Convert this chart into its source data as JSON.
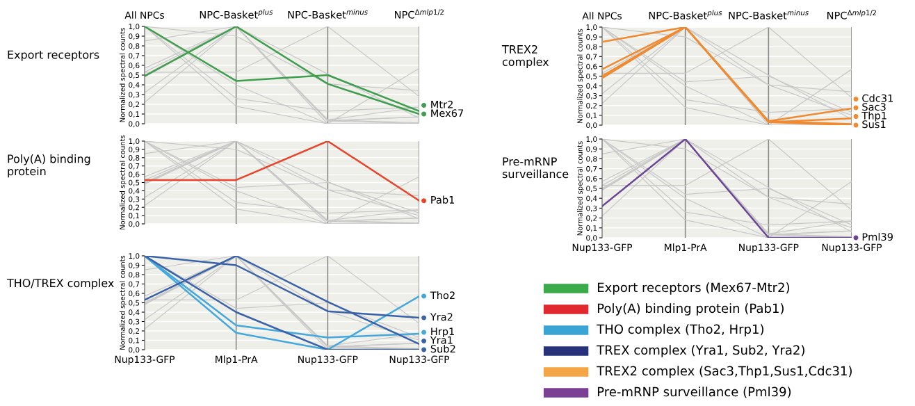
{
  "chart_data": [
    {
      "type": "line",
      "legend": "right",
      "title": "Export receptors",
      "ylabel": "Normalized spectral counts",
      "categories": [
        "All NPCs",
        "NPC-Basket$^{plus}$",
        "NPC-Basket$^{minus}$",
        "NPC$^{Δmlp1/2}$"
      ],
      "ylim": [
        0,
        1
      ],
      "yticks": [
        {
          "value": 0,
          "label": "0,0"
        },
        {
          "value": 0.1,
          "label": "0,1"
        },
        {
          "value": 0.2,
          "label": "0,2"
        },
        {
          "value": 0.3,
          "label": "0,3"
        },
        {
          "value": 0.4,
          "label": "0,4"
        },
        {
          "value": 0.5,
          "label": "0,5"
        },
        {
          "value": 0.6,
          "label": "0,6"
        },
        {
          "value": 0.7,
          "label": "0,7"
        },
        {
          "value": 0.8,
          "label": "0,8"
        },
        {
          "value": 0.9,
          "label": "0,9"
        },
        {
          "value": 1,
          "label": "1,0"
        }
      ],
      "grid": true,
      "series": [
        {
          "color": "#c8c8c8",
          "values": [
            0.53,
            0.53,
            1.0,
            0.28
          ]
        },
        {
          "color": "#c8c8c8",
          "values": [
            1.0,
            0.18,
            0.0,
            0.57
          ]
        },
        {
          "color": "#c8c8c8",
          "values": [
            1.0,
            0.26,
            0.13,
            0.17
          ]
        },
        {
          "color": "#c8c8c8",
          "values": [
            1.0,
            0.9,
            0.41,
            0.34
          ]
        },
        {
          "color": "#c8c8c8",
          "values": [
            0.53,
            1.0,
            0.51,
            0.06
          ]
        },
        {
          "color": "#c8c8c8",
          "values": [
            1.0,
            0.4,
            0.0,
            0.0
          ]
        },
        {
          "color": "#c8c8c8",
          "values": [
            0.85,
            1.0,
            0.04,
            0.17
          ]
        },
        {
          "color": "#c8c8c8",
          "values": [
            0.57,
            1.0,
            0.03,
            0.07
          ]
        },
        {
          "color": "#c8c8c8",
          "values": [
            0.5,
            1.0,
            0.03,
            0.0
          ]
        },
        {
          "color": "#c8c8c8",
          "values": [
            0.48,
            1.0,
            0.04,
            0.01
          ]
        },
        {
          "color": "#c8c8c8",
          "values": [
            0.32,
            1.0,
            0.0,
            0.0
          ]
        },
        {
          "color": "#c8c8c8",
          "values": [
            0.22,
            1.0,
            0.03,
            0.07
          ]
        },
        {
          "name": "Mtr2",
          "color": "#3e9e4e",
          "values": [
            1.0,
            0.44,
            0.5,
            0.13
          ]
        },
        {
          "name": "Mex67",
          "color": "#3e9e4e",
          "values": [
            0.49,
            1.0,
            0.41,
            0.1
          ]
        }
      ]
    },
    {
      "type": "line",
      "legend": "right",
      "title": "Poly(A) binding\nprotein",
      "ylabel": "Normalized spectral counts",
      "categories": [
        null,
        null,
        null,
        null
      ],
      "tick_labels": "y",
      "ylim": [
        0,
        1
      ],
      "yticks": [
        {
          "value": 0,
          "label": "0,0"
        },
        {
          "value": 0.1,
          "label": "0,1"
        },
        {
          "value": 0.2,
          "label": "0,2"
        },
        {
          "value": 0.3,
          "label": "0,3"
        },
        {
          "value": 0.4,
          "label": "0,4"
        },
        {
          "value": 0.5,
          "label": "0,5"
        },
        {
          "value": 0.6,
          "label": "0,6"
        },
        {
          "value": 0.7,
          "label": "0,7"
        },
        {
          "value": 0.8,
          "label": "0,8"
        },
        {
          "value": 0.9,
          "label": "0,9"
        },
        {
          "value": 1,
          "label": "1,0"
        }
      ],
      "grid": true,
      "series": [
        {
          "color": "#c8c8c8",
          "values": [
            1.0,
            0.44,
            0.5,
            0.13
          ]
        },
        {
          "color": "#c8c8c8",
          "values": [
            0.49,
            1.0,
            0.41,
            0.1
          ]
        },
        {
          "color": "#c8c8c8",
          "values": [
            1.0,
            0.18,
            0.0,
            0.57
          ]
        },
        {
          "color": "#c8c8c8",
          "values": [
            1.0,
            0.26,
            0.13,
            0.17
          ]
        },
        {
          "color": "#c8c8c8",
          "values": [
            1.0,
            0.9,
            0.41,
            0.34
          ]
        },
        {
          "color": "#c8c8c8",
          "values": [
            0.53,
            1.0,
            0.51,
            0.06
          ]
        },
        {
          "color": "#c8c8c8",
          "values": [
            1.0,
            0.4,
            0.0,
            0.0
          ]
        },
        {
          "color": "#c8c8c8",
          "values": [
            0.85,
            1.0,
            0.04,
            0.17
          ]
        },
        {
          "color": "#c8c8c8",
          "values": [
            0.57,
            1.0,
            0.03,
            0.07
          ]
        },
        {
          "color": "#c8c8c8",
          "values": [
            0.5,
            1.0,
            0.03,
            0.0
          ]
        },
        {
          "color": "#c8c8c8",
          "values": [
            0.48,
            1.0,
            0.04,
            0.01
          ]
        },
        {
          "color": "#c8c8c8",
          "values": [
            0.32,
            1.0,
            0.0,
            0.0
          ]
        },
        {
          "color": "#c8c8c8",
          "values": [
            0.22,
            1.0,
            0.03,
            0.07
          ]
        },
        {
          "name": "Pab1",
          "color": "#e8452c",
          "values": [
            0.53,
            0.53,
            1.0,
            0.28
          ]
        }
      ]
    },
    {
      "type": "line",
      "legend": "right",
      "title": "THO/TREX complex",
      "ylabel": "Normalized spectral counts",
      "categories": [
        "Nup133-GFP",
        "Mlp1-PrA",
        "Nup133-GFP",
        "Nup133-GFP"
      ],
      "ylim": [
        0,
        1
      ],
      "yticks": [
        {
          "value": 0,
          "label": "0,0"
        },
        {
          "value": 0.1,
          "label": "0,1"
        },
        {
          "value": 0.2,
          "label": "0,2"
        },
        {
          "value": 0.3,
          "label": "0,3"
        },
        {
          "value": 0.4,
          "label": "0,4"
        },
        {
          "value": 0.5,
          "label": "0,5"
        },
        {
          "value": 0.6,
          "label": "0,6"
        },
        {
          "value": 0.7,
          "label": "0,7"
        },
        {
          "value": 0.8,
          "label": "0,8"
        },
        {
          "value": 0.9,
          "label": "0,9"
        },
        {
          "value": 1,
          "label": "1,0"
        }
      ],
      "grid": true,
      "series": [
        {
          "color": "#c8c8c8",
          "values": [
            1.0,
            0.44,
            0.5,
            0.13
          ]
        },
        {
          "color": "#c8c8c8",
          "values": [
            0.49,
            1.0,
            0.41,
            0.1
          ]
        },
        {
          "color": "#c8c8c8",
          "values": [
            0.53,
            0.53,
            1.0,
            0.28
          ]
        },
        {
          "color": "#c8c8c8",
          "values": [
            0.85,
            1.0,
            0.04,
            0.17
          ]
        },
        {
          "color": "#c8c8c8",
          "values": [
            0.57,
            1.0,
            0.03,
            0.07
          ]
        },
        {
          "color": "#c8c8c8",
          "values": [
            0.5,
            1.0,
            0.03,
            0.0
          ]
        },
        {
          "color": "#c8c8c8",
          "values": [
            0.48,
            1.0,
            0.04,
            0.01
          ]
        },
        {
          "color": "#c8c8c8",
          "values": [
            0.32,
            1.0,
            0.0,
            0.0
          ]
        },
        {
          "color": "#c8c8c8",
          "values": [
            0.22,
            1.0,
            0.03,
            0.07
          ]
        },
        {
          "name": "Tho2",
          "color": "#44a8dc",
          "values": [
            1.0,
            0.18,
            0.0,
            0.57
          ]
        },
        {
          "name": "Yra2",
          "color": "#3a62a8",
          "values": [
            1.0,
            0.9,
            0.41,
            0.34
          ]
        },
        {
          "name": "Hrp1",
          "color": "#44a8dc",
          "values": [
            1.0,
            0.26,
            0.13,
            0.17
          ]
        },
        {
          "name": "Yra1",
          "color": "#3a62a8",
          "values": [
            0.53,
            1.0,
            0.51,
            0.06
          ]
        },
        {
          "name": "Sub2",
          "color": "#3a62a8",
          "values": [
            1.0,
            0.4,
            0.0,
            0.0
          ]
        }
      ]
    },
    {
      "type": "line",
      "legend": "right",
      "title": "TREX2\ncomplex",
      "ylabel": "Normalized spectral counts",
      "categories": [
        "All NPCs",
        "NPC-Basket$^{plus}$",
        "NPC-Basket$^{minus}$",
        "NPC$^{Δmlp1/2}$"
      ],
      "ylim": [
        0,
        1
      ],
      "yticks": [
        {
          "value": 0,
          "label": "0,0"
        },
        {
          "value": 0.1,
          "label": "0,1"
        },
        {
          "value": 0.2,
          "label": "0,2"
        },
        {
          "value": 0.3,
          "label": "0,3"
        },
        {
          "value": 0.4,
          "label": "0,4"
        },
        {
          "value": 0.5,
          "label": "0,5"
        },
        {
          "value": 0.6,
          "label": "0,6"
        },
        {
          "value": 0.7,
          "label": "0,7"
        },
        {
          "value": 0.8,
          "label": "0,8"
        },
        {
          "value": 0.9,
          "label": "0,9"
        },
        {
          "value": 1,
          "label": "1,0"
        }
      ],
      "grid": true,
      "series": [
        {
          "color": "#c8c8c8",
          "values": [
            1.0,
            0.44,
            0.5,
            0.13
          ]
        },
        {
          "color": "#c8c8c8",
          "values": [
            0.49,
            1.0,
            0.41,
            0.1
          ]
        },
        {
          "color": "#c8c8c8",
          "values": [
            0.53,
            0.53,
            1.0,
            0.28
          ]
        },
        {
          "color": "#c8c8c8",
          "values": [
            1.0,
            0.18,
            0.0,
            0.57
          ]
        },
        {
          "color": "#c8c8c8",
          "values": [
            1.0,
            0.26,
            0.13,
            0.17
          ]
        },
        {
          "color": "#c8c8c8",
          "values": [
            1.0,
            0.9,
            0.41,
            0.34
          ]
        },
        {
          "color": "#c8c8c8",
          "values": [
            0.53,
            1.0,
            0.51,
            0.06
          ]
        },
        {
          "color": "#c8c8c8",
          "values": [
            1.0,
            0.4,
            0.0,
            0.0
          ]
        },
        {
          "color": "#c8c8c8",
          "values": [
            0.32,
            1.0,
            0.0,
            0.0
          ]
        },
        {
          "color": "#c8c8c8",
          "values": [
            0.22,
            1.0,
            0.03,
            0.07
          ]
        },
        {
          "name": "Cdc31",
          "color": "#f08a30",
          "values": [
            0.85,
            1.0,
            0.04,
            0.17
          ]
        },
        {
          "name": "Sac3",
          "color": "#f08a30",
          "values": [
            0.57,
            1.0,
            0.03,
            0.07
          ]
        },
        {
          "name": "Sus1",
          "color": "#f08a30",
          "values": [
            0.5,
            1.0,
            0.03,
            0.0
          ]
        },
        {
          "name": "Thp1",
          "color": "#f08a30",
          "values": [
            0.48,
            1.0,
            0.04,
            0.01
          ]
        }
      ]
    },
    {
      "type": "line",
      "legend": "right",
      "title": "Pre-mRNP\nsurveillance",
      "ylabel": "Normalized spectral counts",
      "categories": [
        "Nup133-GFP",
        "Mlp1-PrA",
        "Nup133-GFP",
        "Nup133-GFP"
      ],
      "ylim": [
        0,
        1
      ],
      "yticks": [
        {
          "value": 0,
          "label": "0,0"
        },
        {
          "value": 0.1,
          "label": "0,1"
        },
        {
          "value": 0.2,
          "label": "0,2"
        },
        {
          "value": 0.3,
          "label": "0,3"
        },
        {
          "value": 0.4,
          "label": "0,4"
        },
        {
          "value": 0.5,
          "label": "0,5"
        },
        {
          "value": 0.6,
          "label": "0,6"
        },
        {
          "value": 0.7,
          "label": "0,7"
        },
        {
          "value": 0.8,
          "label": "0,8"
        },
        {
          "value": 0.9,
          "label": "0,9"
        },
        {
          "value": 1,
          "label": "1,0"
        }
      ],
      "grid": true,
      "series": [
        {
          "color": "#c8c8c8",
          "values": [
            1.0,
            0.44,
            0.5,
            0.13
          ]
        },
        {
          "color": "#c8c8c8",
          "values": [
            0.49,
            1.0,
            0.41,
            0.1
          ]
        },
        {
          "color": "#c8c8c8",
          "values": [
            0.53,
            0.53,
            1.0,
            0.28
          ]
        },
        {
          "color": "#c8c8c8",
          "values": [
            1.0,
            0.18,
            0.0,
            0.57
          ]
        },
        {
          "color": "#c8c8c8",
          "values": [
            1.0,
            0.26,
            0.13,
            0.17
          ]
        },
        {
          "color": "#c8c8c8",
          "values": [
            1.0,
            0.9,
            0.41,
            0.34
          ]
        },
        {
          "color": "#c8c8c8",
          "values": [
            0.53,
            1.0,
            0.51,
            0.06
          ]
        },
        {
          "color": "#c8c8c8",
          "values": [
            1.0,
            0.4,
            0.0,
            0.0
          ]
        },
        {
          "color": "#c8c8c8",
          "values": [
            0.85,
            1.0,
            0.04,
            0.17
          ]
        },
        {
          "color": "#c8c8c8",
          "values": [
            0.57,
            1.0,
            0.03,
            0.07
          ]
        },
        {
          "color": "#c8c8c8",
          "values": [
            0.5,
            1.0,
            0.03,
            0.0
          ]
        },
        {
          "color": "#c8c8c8",
          "values": [
            0.48,
            1.0,
            0.04,
            0.01
          ]
        },
        {
          "color": "#c8c8c8",
          "values": [
            0.22,
            1.0,
            0.03,
            0.07
          ]
        },
        {
          "name": "Pml39",
          "color": "#6b4596",
          "values": [
            0.32,
            1.0,
            0.0,
            0.0
          ]
        }
      ]
    },
    {
      "type": "other",
      "categories": [
        "Export receptors (Mex67-Mtr2)",
        "Poly(A) binding protein (Pab1)",
        "THO complex (Tho2, Hrp1)",
        "TREX complex (Yra1, Sub2, Yra2)",
        "TREX2 complex (Sac3,Thp1,Sus1,Cdc31)",
        "Pre-mRNP surveillance (Pml39)"
      ],
      "colors": [
        "#3aaa4a",
        "#e0282e",
        "#3aa5d5",
        "#27327a",
        "#f4a545",
        "#7b3f93"
      ]
    }
  ]
}
